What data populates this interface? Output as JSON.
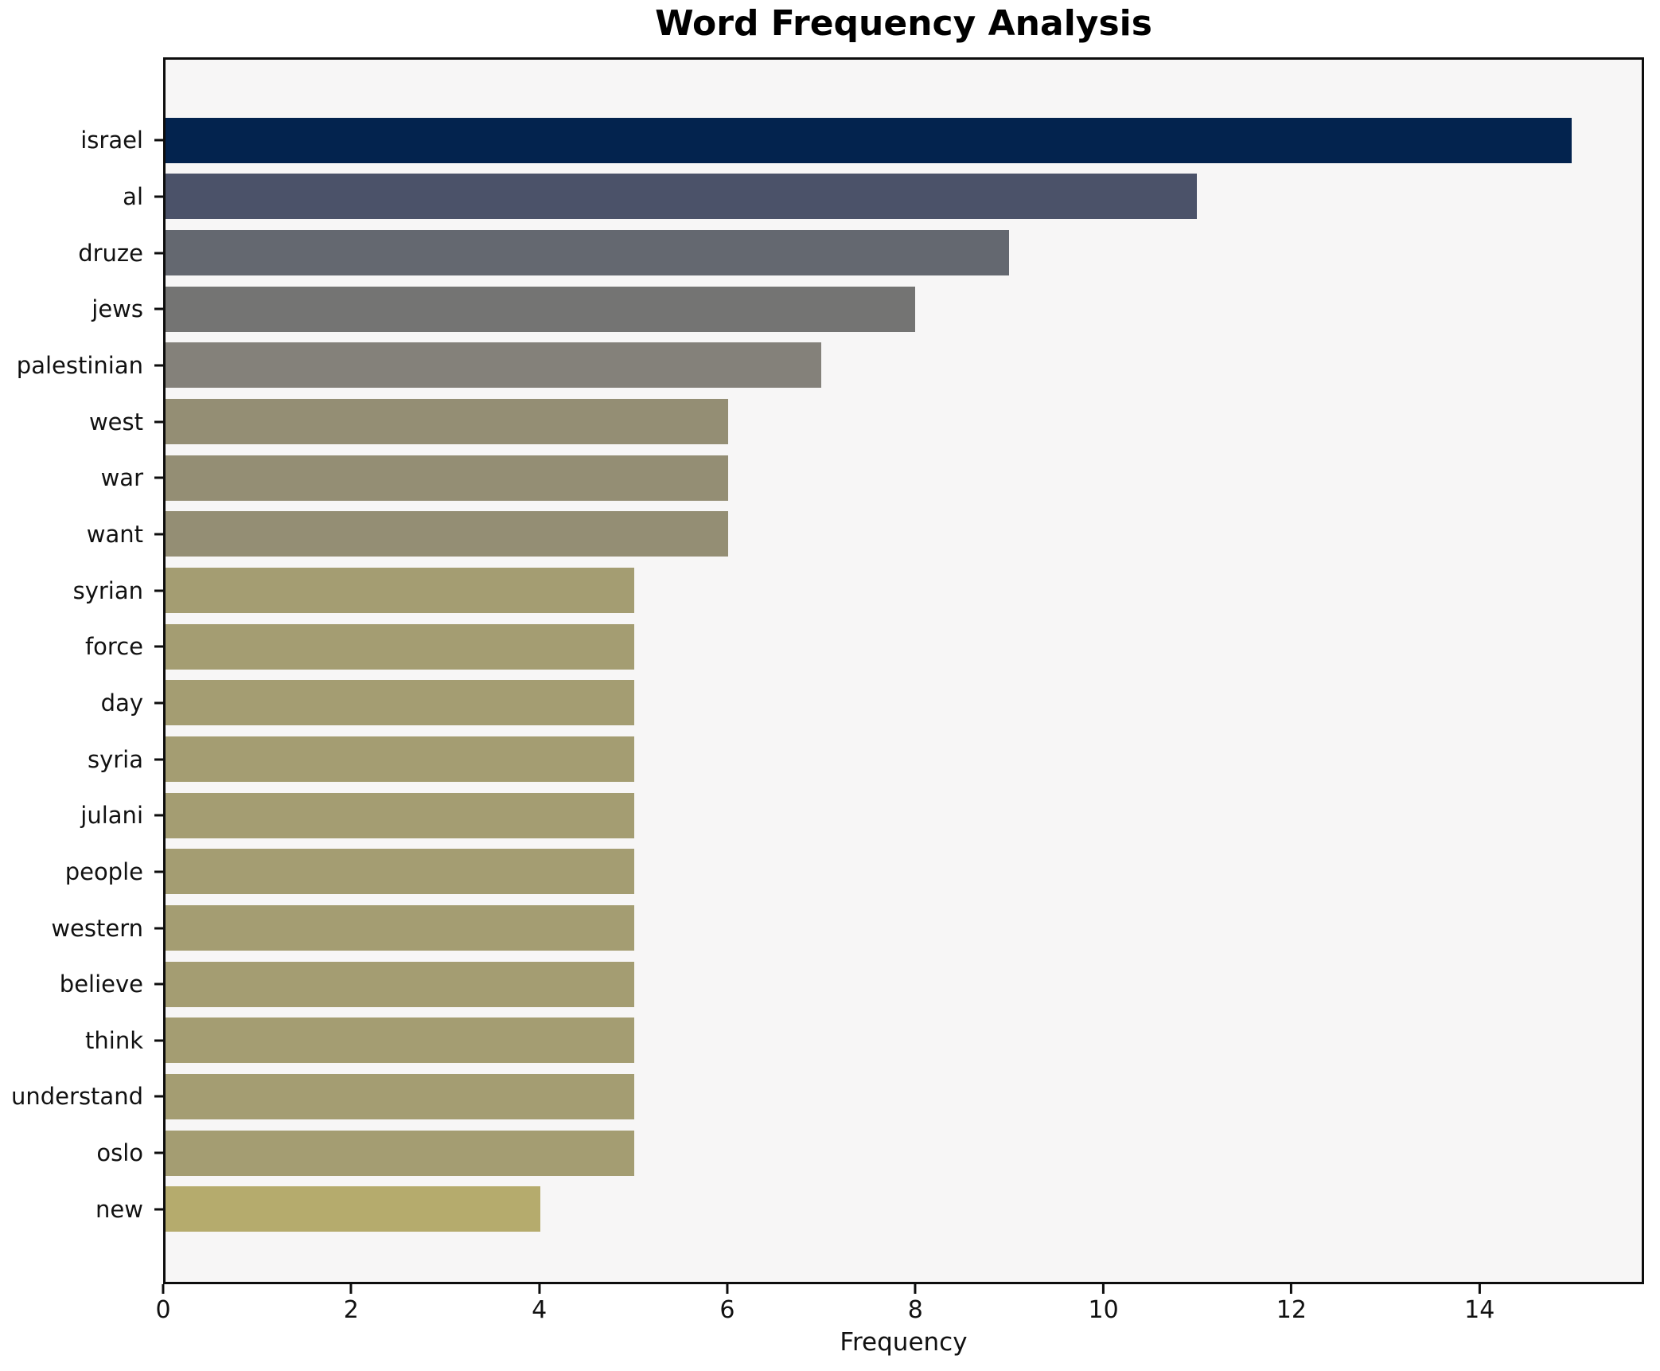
{
  "chart_data": {
    "type": "bar",
    "orientation": "horizontal",
    "title": "Word Frequency Analysis",
    "xlabel": "Frequency",
    "ylabel": "",
    "categories": [
      "israel",
      "al",
      "druze",
      "jews",
      "palestinian",
      "west",
      "war",
      "want",
      "syrian",
      "force",
      "day",
      "syria",
      "julani",
      "people",
      "western",
      "believe",
      "think",
      "understand",
      "oslo",
      "new"
    ],
    "values": [
      15,
      11,
      9,
      8,
      7,
      6,
      6,
      6,
      5,
      5,
      5,
      5,
      5,
      5,
      5,
      5,
      5,
      5,
      5,
      4
    ],
    "bar_colors": [
      "#03234e",
      "#4b5269",
      "#646870",
      "#747473",
      "#84817a",
      "#948e74",
      "#948e74",
      "#948e74",
      "#a49d72",
      "#a49d72",
      "#a49d72",
      "#a49d72",
      "#a49d72",
      "#a49d72",
      "#a49d72",
      "#a49d72",
      "#a49d72",
      "#a49d72",
      "#a49d72",
      "#b5ab6d"
    ],
    "xlim": [
      0,
      15.75
    ],
    "xticks": [
      0,
      2,
      4,
      6,
      8,
      10,
      12,
      14
    ],
    "grid": false,
    "legend": null,
    "plot_background": "#f7f6f6",
    "figure_background": "#ffffff",
    "spine_color": "#0d0d0d"
  }
}
